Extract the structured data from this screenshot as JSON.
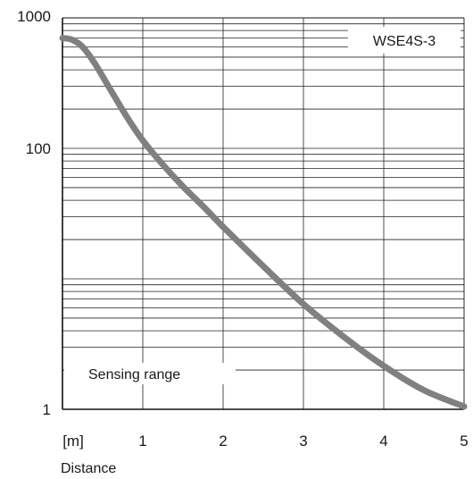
{
  "chart_data": {
    "type": "line",
    "title": "",
    "xlabel": "Distance",
    "x_unit_label": "[m]",
    "ylabel": "",
    "xlim": [
      0,
      5
    ],
    "ylim": [
      1,
      1000
    ],
    "y_scale": "log",
    "x_ticks": [
      "1",
      "2",
      "3",
      "4",
      "5"
    ],
    "y_ticks": [
      "1",
      "100",
      "1000"
    ],
    "grid": true,
    "legend": {
      "placement": "top-right",
      "entries": [
        "WSE4S-3"
      ]
    },
    "annotations": [
      "Sensing range"
    ],
    "series": [
      {
        "name": "WSE4S-3",
        "color": "#808080",
        "x": [
          0,
          0.12,
          0.25,
          0.4,
          0.6,
          0.8,
          1.0,
          1.25,
          1.5,
          1.75,
          2.0,
          2.5,
          3.0,
          3.5,
          4.0,
          4.5,
          5.0
        ],
        "y": [
          700,
          680,
          600,
          450,
          280,
          175,
          115,
          75,
          51,
          36,
          25,
          12.5,
          6.4,
          3.6,
          2.15,
          1.4,
          1.05
        ]
      }
    ]
  }
}
